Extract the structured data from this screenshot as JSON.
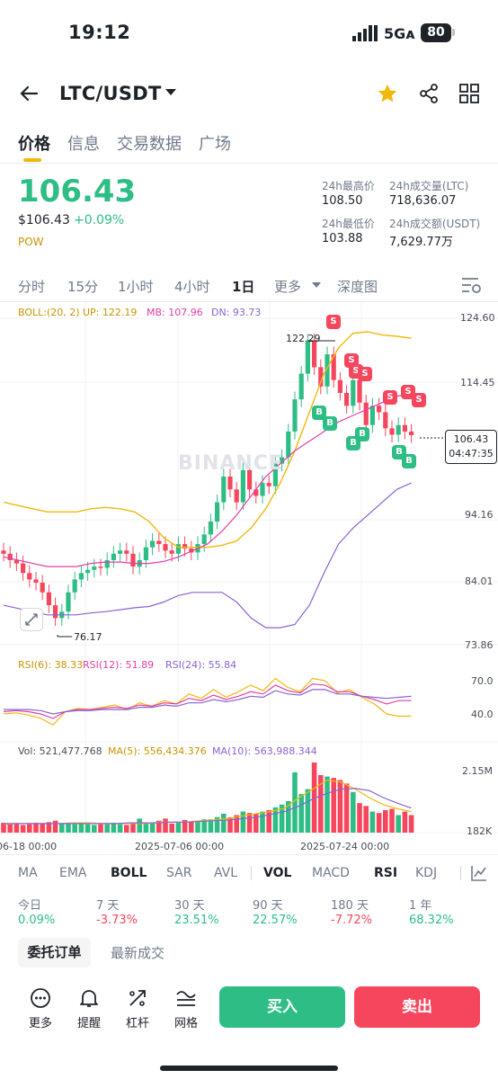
{
  "status_bar": {
    "time": "19:12",
    "network": "5G",
    "battery": "80"
  },
  "header": {
    "pair": "LTC/USDT"
  },
  "tabs": [
    "价格",
    "信息",
    "交易数据",
    "广场"
  ],
  "price": {
    "last": "106.43",
    "usd": "$106.43",
    "change": "+0.09%",
    "tag": "POW"
  },
  "stats": {
    "high_label": "24h最高价",
    "high": "108.50",
    "low_label": "24h最低价",
    "low": "103.88",
    "vol_label": "24h成交量(LTC)",
    "vol": "718,636.07",
    "amt_label": "24h成交额(USDT)",
    "amt": "7,629.77万"
  },
  "intervals": [
    "分时",
    "15分",
    "1小时",
    "4小时",
    "1日",
    "更多",
    "深度图"
  ],
  "boll": {
    "label": "BOLL:(20, 2)",
    "up": "UP: 122.19",
    "mb": "MB: 107.96",
    "dn": "DN: 93.73"
  },
  "price_axis": [
    "124.60",
    "114.45",
    "94.16",
    "84.01",
    "73.86"
  ],
  "price_high_label": "122.29",
  "price_low_label": "76.17",
  "current_price_box": {
    "price": "106.43",
    "countdown": "04:47:35"
  },
  "watermark": "BINANCE",
  "rsi": {
    "r6": "RSI(6): 38.33",
    "r12": "RSI(12): 51.89",
    "r24": "RSI(24): 55.84",
    "axis": [
      "70.0",
      "40.0"
    ]
  },
  "vol": {
    "vol": "Vol: 521,477.768",
    "ma5": "MA(5): 556,434.376",
    "ma10": "MA(10): 563,988.344",
    "axis": [
      "2.15M",
      "182K"
    ]
  },
  "dates": [
    "06-18 00:00",
    "2025-07-06 00:00",
    "2025-07-24 00:00"
  ],
  "indicator_tabs": [
    "MA",
    "EMA",
    "BOLL",
    "SAR",
    "AVL",
    "VOL",
    "MACD",
    "RSI",
    "KDJ"
  ],
  "performance": [
    {
      "label": "今日",
      "value": "0.09%"
    },
    {
      "label": "7 天",
      "value": "-3.73%"
    },
    {
      "label": "30 天",
      "value": "23.51%"
    },
    {
      "label": "90 天",
      "value": "22.57%"
    },
    {
      "label": "180 天",
      "value": "-7.72%"
    },
    {
      "label": "1 年",
      "value": "68.32%"
    }
  ],
  "order_tabs": [
    "委托订单",
    "最新成交"
  ],
  "bottom": {
    "more": "更多",
    "alert": "提醒",
    "leverage": "杠杆",
    "grid": "网格",
    "buy": "买入",
    "sell": "卖出"
  },
  "colors": {
    "up": "#2ebd85",
    "down": "#f6465d",
    "accent": "#f0b90b"
  }
}
